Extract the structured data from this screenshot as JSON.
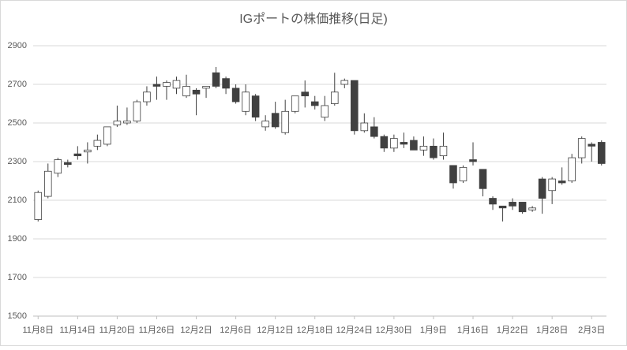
{
  "chart_data": {
    "type": "candlestick",
    "title": "IGポートの株価推移(日足)",
    "categories": [
      "11月8日",
      null,
      null,
      null,
      "11月14日",
      null,
      null,
      null,
      "11月20日",
      null,
      null,
      null,
      "11月26日",
      null,
      null,
      null,
      "12月2日",
      null,
      null,
      null,
      "12月6日",
      null,
      null,
      null,
      "12月12日",
      null,
      null,
      null,
      "12月18日",
      null,
      null,
      null,
      "12月24日",
      null,
      null,
      null,
      "12月30日",
      null,
      null,
      null,
      "1月9日",
      null,
      null,
      null,
      "1月16日",
      null,
      null,
      null,
      "1月22日",
      null,
      null,
      null,
      "1月28日",
      null,
      null,
      null,
      "2月3日",
      null
    ],
    "open": [
      2000,
      2120,
      2240,
      2295,
      2340,
      2350,
      2380,
      2390,
      2490,
      2500,
      2510,
      2610,
      2700,
      2690,
      2680,
      2640,
      2670,
      2680,
      2760,
      2730,
      2680,
      2560,
      2640,
      2480,
      2550,
      2450,
      2560,
      2660,
      2610,
      2530,
      2600,
      2700,
      2720,
      2460,
      2480,
      2430,
      2370,
      2400,
      2410,
      2360,
      2380,
      2330,
      2280,
      2200,
      2310,
      2260,
      2110,
      2070,
      2090,
      2090,
      2050,
      2210,
      2150,
      2200,
      2200,
      2320,
      2390,
      2400
    ],
    "high": [
      2150,
      2290,
      2320,
      2310,
      2380,
      2400,
      2440,
      2480,
      2590,
      2580,
      2620,
      2690,
      2740,
      2720,
      2740,
      2750,
      2680,
      2690,
      2790,
      2740,
      2700,
      2700,
      2650,
      2540,
      2610,
      2620,
      2640,
      2720,
      2640,
      2640,
      2760,
      2730,
      2720,
      2550,
      2530,
      2440,
      2440,
      2450,
      2430,
      2430,
      2420,
      2450,
      2280,
      2280,
      2400,
      2260,
      2120,
      2070,
      2110,
      2090,
      2070,
      2220,
      2220,
      2270,
      2340,
      2430,
      2400,
      2410
    ],
    "low": [
      1990,
      2110,
      2220,
      2270,
      2310,
      2290,
      2360,
      2380,
      2480,
      2490,
      2500,
      2590,
      2620,
      2620,
      2650,
      2630,
      2540,
      2630,
      2680,
      2650,
      2600,
      2540,
      2510,
      2460,
      2470,
      2440,
      2550,
      2580,
      2570,
      2510,
      2590,
      2680,
      2440,
      2450,
      2420,
      2350,
      2350,
      2370,
      2360,
      2330,
      2310,
      2310,
      2160,
      2190,
      2280,
      2120,
      2050,
      1990,
      2050,
      2030,
      2040,
      2030,
      2080,
      2180,
      2190,
      2290,
      2300,
      2280
    ],
    "close": [
      2140,
      2250,
      2310,
      2285,
      2330,
      2360,
      2410,
      2480,
      2510,
      2510,
      2610,
      2660,
      2690,
      2710,
      2720,
      2690,
      2650,
      2690,
      2690,
      2680,
      2610,
      2660,
      2530,
      2510,
      2480,
      2560,
      2640,
      2640,
      2590,
      2590,
      2660,
      2720,
      2460,
      2500,
      2430,
      2370,
      2420,
      2390,
      2360,
      2380,
      2320,
      2380,
      2190,
      2270,
      2300,
      2160,
      2080,
      2060,
      2070,
      2040,
      2060,
      2110,
      2210,
      2190,
      2320,
      2420,
      2380,
      2290
    ],
    "up_color": "#ffffff",
    "down_color": "#404040",
    "line_color": "#404040",
    "ylim": [
      1500,
      2900
    ],
    "yticks": [
      1500,
      1700,
      1900,
      2100,
      2300,
      2500,
      2700,
      2900
    ],
    "grid": true
  }
}
